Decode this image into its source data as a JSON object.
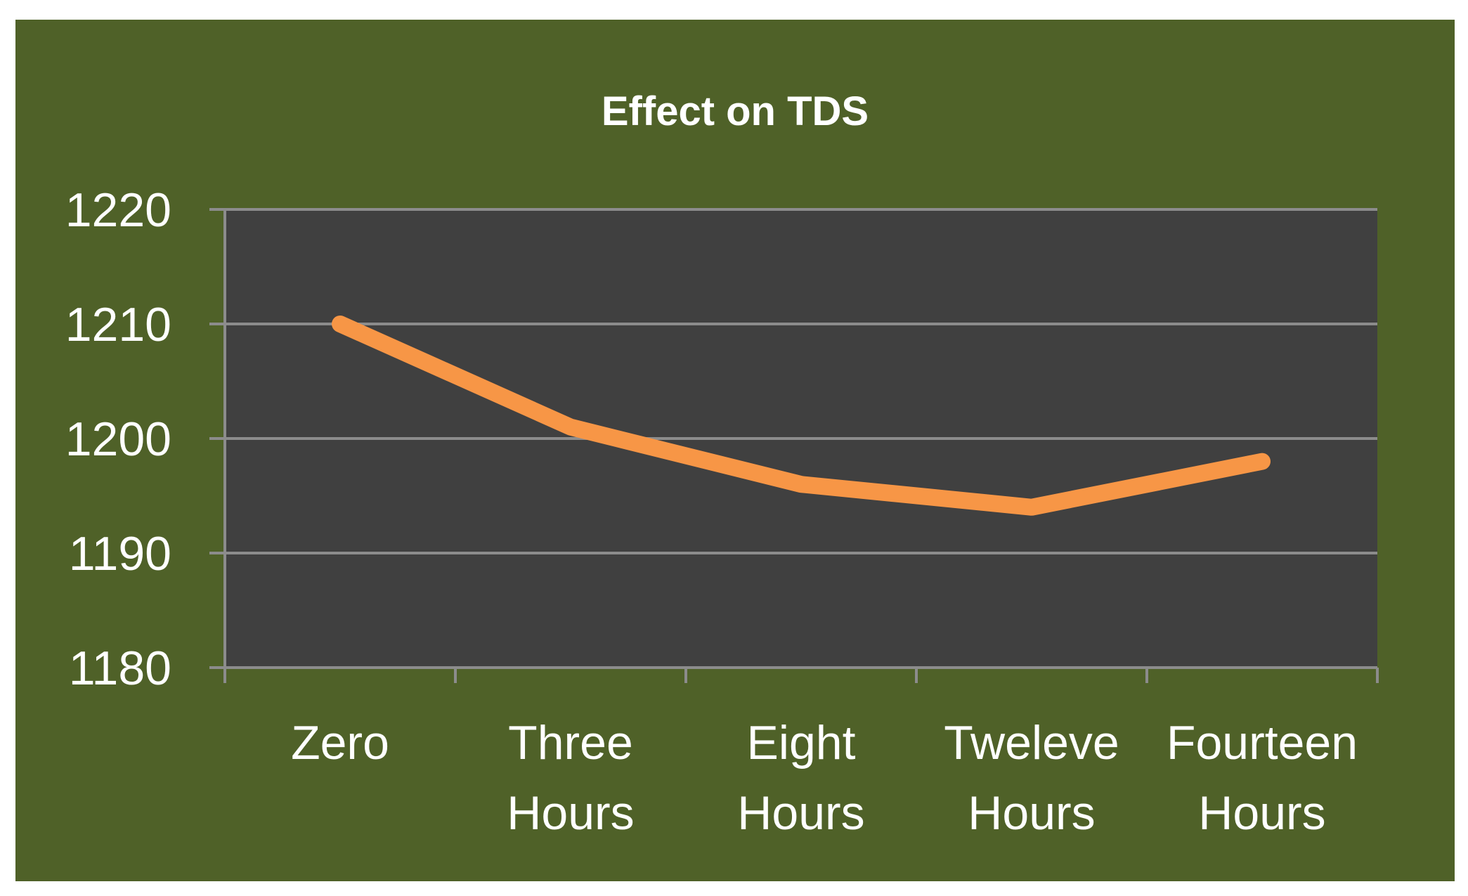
{
  "chart_data": {
    "type": "line",
    "title": "Effect on TDS",
    "xlabel": "",
    "ylabel": "",
    "categories": [
      [
        "Zero"
      ],
      [
        "Three",
        "Hours"
      ],
      [
        "Eight",
        "Hours"
      ],
      [
        "Tweleve",
        "Hours"
      ],
      [
        "Fourteen",
        "Hours"
      ]
    ],
    "series": [
      {
        "name": "TDS",
        "values": [
          1210,
          1201,
          1196,
          1194,
          1198
        ],
        "color": "#f79646"
      }
    ],
    "ylim": [
      1180,
      1220
    ],
    "yticks": [
      "1180",
      "1190",
      "1200",
      "1210",
      "1220"
    ],
    "grid": true,
    "legend": "none",
    "colors": {
      "background": "#4f6128",
      "plot_area": "#404040",
      "grid": "#8c8c8c",
      "text": "#ffffff"
    }
  }
}
